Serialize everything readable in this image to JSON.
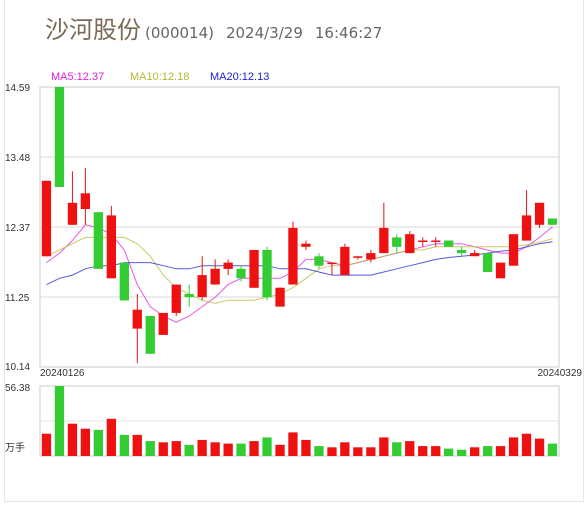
{
  "header": {
    "name": "沙河股份",
    "code": "(000014)",
    "date": "2024/3/29",
    "time": "16:46:27"
  },
  "legend": [
    {
      "label": "MA5:12.37",
      "color": "#e020e0"
    },
    {
      "label": "MA10:12.18",
      "color": "#b8b830"
    },
    {
      "label": "MA20:12.13",
      "color": "#2020d0"
    }
  ],
  "colors": {
    "up": "#ee1111",
    "down": "#33cc33",
    "grid": "#cccccc",
    "axis_text": "#333333"
  },
  "chart_data": {
    "type": "candlestick",
    "price_ticks": [
      "14.59",
      "13.48",
      "12.37",
      "11.25",
      "10.14"
    ],
    "ylim": [
      10.14,
      14.59
    ],
    "date_start": "20240126",
    "date_end": "20240329",
    "volume_max_label": "56.38",
    "volume_unit": "万手",
    "candles": [
      {
        "o": 11.9,
        "c": 13.1,
        "h": 13.1,
        "l": 11.9,
        "v": 18
      },
      {
        "o": 14.59,
        "c": 13.0,
        "h": 14.59,
        "l": 13.0,
        "v": 56.38
      },
      {
        "o": 12.4,
        "c": 12.75,
        "h": 13.25,
        "l": 12.4,
        "v": 26
      },
      {
        "o": 12.65,
        "c": 12.9,
        "h": 13.3,
        "l": 12.4,
        "v": 22
      },
      {
        "o": 12.6,
        "c": 11.7,
        "h": 12.6,
        "l": 11.7,
        "v": 21
      },
      {
        "o": 11.55,
        "c": 12.55,
        "h": 12.7,
        "l": 11.55,
        "v": 30
      },
      {
        "o": 11.8,
        "c": 11.2,
        "h": 11.8,
        "l": 11.2,
        "v": 17
      },
      {
        "o": 10.75,
        "c": 11.05,
        "h": 11.3,
        "l": 10.2,
        "v": 17
      },
      {
        "o": 10.95,
        "c": 10.35,
        "h": 10.95,
        "l": 10.35,
        "v": 12
      },
      {
        "o": 10.65,
        "c": 11.0,
        "h": 11.0,
        "l": 10.65,
        "v": 11
      },
      {
        "o": 11.0,
        "c": 11.45,
        "h": 11.45,
        "l": 10.95,
        "v": 12
      },
      {
        "o": 11.3,
        "c": 11.25,
        "h": 11.45,
        "l": 11.1,
        "v": 9
      },
      {
        "o": 11.25,
        "c": 11.6,
        "h": 11.9,
        "l": 11.2,
        "v": 13
      },
      {
        "o": 11.45,
        "c": 11.7,
        "h": 11.85,
        "l": 11.45,
        "v": 11
      },
      {
        "o": 11.7,
        "c": 11.8,
        "h": 11.85,
        "l": 11.6,
        "v": 10
      },
      {
        "o": 11.7,
        "c": 11.55,
        "h": 11.75,
        "l": 11.5,
        "v": 10
      },
      {
        "o": 11.4,
        "c": 12.0,
        "h": 12.0,
        "l": 11.4,
        "v": 12
      },
      {
        "o": 12.0,
        "c": 11.25,
        "h": 12.05,
        "l": 11.2,
        "v": 15
      },
      {
        "o": 11.1,
        "c": 11.4,
        "h": 11.4,
        "l": 11.1,
        "v": 9
      },
      {
        "o": 11.45,
        "c": 12.35,
        "h": 12.45,
        "l": 11.45,
        "v": 19
      },
      {
        "o": 12.05,
        "c": 12.1,
        "h": 12.15,
        "l": 12.0,
        "v": 13
      },
      {
        "o": 11.9,
        "c": 11.75,
        "h": 11.95,
        "l": 11.7,
        "v": 8
      },
      {
        "o": 11.8,
        "c": 11.8,
        "h": 11.8,
        "l": 11.6,
        "v": 7
      },
      {
        "o": 11.6,
        "c": 12.05,
        "h": 12.1,
        "l": 11.6,
        "v": 11
      },
      {
        "o": 11.9,
        "c": 11.9,
        "h": 11.9,
        "l": 11.85,
        "v": 7
      },
      {
        "o": 11.85,
        "c": 11.95,
        "h": 12.0,
        "l": 11.8,
        "v": 7
      },
      {
        "o": 11.95,
        "c": 12.35,
        "h": 12.75,
        "l": 11.95,
        "v": 15
      },
      {
        "o": 12.2,
        "c": 12.05,
        "h": 12.25,
        "l": 11.95,
        "v": 11
      },
      {
        "o": 11.95,
        "c": 12.25,
        "h": 12.3,
        "l": 11.95,
        "v": 12
      },
      {
        "o": 12.15,
        "c": 12.15,
        "h": 12.2,
        "l": 12.05,
        "v": 8
      },
      {
        "o": 12.15,
        "c": 12.15,
        "h": 12.2,
        "l": 12.05,
        "v": 8
      },
      {
        "o": 12.15,
        "c": 12.05,
        "h": 12.15,
        "l": 12.05,
        "v": 6
      },
      {
        "o": 12.0,
        "c": 11.95,
        "h": 12.05,
        "l": 11.9,
        "v": 5
      },
      {
        "o": 11.9,
        "c": 11.95,
        "h": 12.0,
        "l": 11.9,
        "v": 7
      },
      {
        "o": 11.95,
        "c": 11.65,
        "h": 11.95,
        "l": 11.65,
        "v": 8
      },
      {
        "o": 11.55,
        "c": 11.8,
        "h": 11.8,
        "l": 11.55,
        "v": 8
      },
      {
        "o": 11.75,
        "c": 12.25,
        "h": 12.25,
        "l": 11.75,
        "v": 15
      },
      {
        "o": 12.15,
        "c": 12.55,
        "h": 12.95,
        "l": 12.15,
        "v": 18
      },
      {
        "o": 12.4,
        "c": 12.75,
        "h": 12.75,
        "l": 12.35,
        "v": 14
      },
      {
        "o": 12.5,
        "c": 12.4,
        "h": 12.5,
        "l": 12.4,
        "v": 10
      }
    ],
    "ma5": [
      11.8,
      11.95,
      12.15,
      12.4,
      12.35,
      12.25,
      12.0,
      11.45,
      11.1,
      10.95,
      10.85,
      10.95,
      11.1,
      11.25,
      11.45,
      11.55,
      11.55,
      11.55,
      11.55,
      11.65,
      11.85,
      11.85,
      11.8,
      11.75,
      11.8,
      11.85,
      11.9,
      11.95,
      12.0,
      12.05,
      12.1,
      12.1,
      12.1,
      12.05,
      12.0,
      11.95,
      11.95,
      12.05,
      12.2,
      12.37
    ],
    "ma10": [
      11.9,
      12.0,
      12.1,
      12.2,
      12.2,
      12.2,
      12.2,
      12.1,
      11.9,
      11.6,
      11.4,
      11.3,
      11.2,
      11.15,
      11.2,
      11.2,
      11.2,
      11.25,
      11.3,
      11.4,
      11.55,
      11.7,
      11.75,
      11.75,
      11.8,
      11.85,
      11.9,
      11.95,
      12.0,
      12.0,
      12.05,
      12.05,
      12.05,
      12.05,
      12.05,
      12.05,
      12.05,
      12.08,
      12.12,
      12.18
    ],
    "ma20": [
      11.45,
      11.55,
      11.6,
      11.7,
      11.75,
      11.75,
      11.8,
      11.8,
      11.8,
      11.75,
      11.7,
      11.7,
      11.75,
      11.75,
      11.75,
      11.75,
      11.75,
      11.75,
      11.7,
      11.7,
      11.7,
      11.65,
      11.6,
      11.6,
      11.6,
      11.6,
      11.65,
      11.7,
      11.75,
      11.8,
      11.85,
      11.88,
      11.9,
      11.92,
      11.95,
      11.98,
      12.0,
      12.05,
      12.1,
      12.13
    ]
  }
}
